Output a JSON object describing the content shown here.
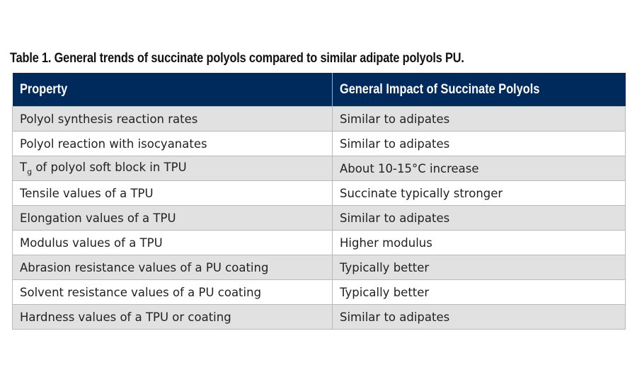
{
  "caption": "Table 1. General trends of succinate polyols compared to similar adipate polyols PU.",
  "table": {
    "headers": [
      "Property",
      "General Impact of Succinate Polyols"
    ],
    "header_bg": "#002a5c",
    "rows": [
      {
        "property": "Polyol synthesis reaction rates",
        "impact": "Similar to adipates"
      },
      {
        "property": "Polyol reaction with isocyanates",
        "impact": "Similar to adipates"
      },
      {
        "property_main": "T",
        "property_sub": "g",
        "property_rest": " of polyol soft block in TPU",
        "property": "Tg of polyol soft block in TPU",
        "impact": "About 10-15°C increase"
      },
      {
        "property": "Tensile values of a TPU",
        "impact": "Succinate typically stronger"
      },
      {
        "property": "Elongation values of a TPU",
        "impact": "Similar to adipates"
      },
      {
        "property": "Modulus values of a TPU",
        "impact": "Higher modulus"
      },
      {
        "property": "Abrasion resistance values of a PU coating",
        "impact": "Typically better"
      },
      {
        "property": "Solvent resistance values of a PU coating",
        "impact": "Typically better"
      },
      {
        "property": "Hardness values of a TPU or coating",
        "impact": "Similar to adipates"
      }
    ]
  }
}
